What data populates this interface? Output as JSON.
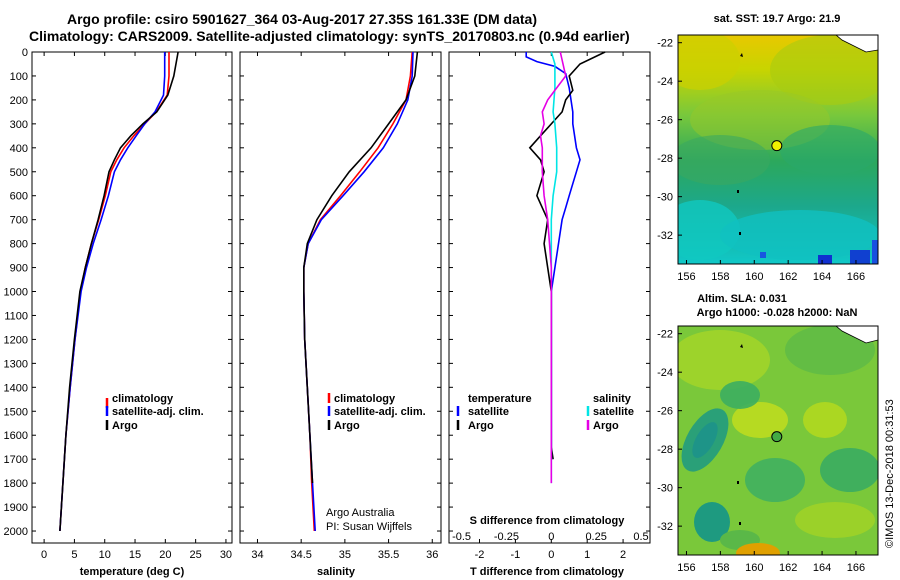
{
  "header": {
    "line1": "Argo profile: csiro 5901627_364 03-Aug-2017 27.35S 161.33E (DM data)",
    "line2": "Climatology: CARS2009. Satellite-adjusted climatology: synTS_20170803.nc (0.94d earlier)"
  },
  "credit": {
    "org": "Argo Australia",
    "pi": "PI: Susan Wijffels",
    "stamp": "©IMOS 13-Dec-2018 00:31:53"
  },
  "colors": {
    "climatology": "#ff0000",
    "satellite": "#0000ff",
    "argo": "#000000",
    "sal_satellite": "#00e5e5",
    "sal_argo": "#e500e5"
  },
  "chart_data": [
    {
      "type": "line",
      "id": "temperature",
      "xlabel": "temperature (deg C)",
      "ylabel": "",
      "xlim": [
        -2,
        31
      ],
      "ylim": [
        2050,
        0
      ],
      "x_ticks": [
        0,
        5,
        10,
        15,
        20,
        25,
        30
      ],
      "y_ticks": [
        0,
        100,
        200,
        300,
        400,
        500,
        600,
        700,
        800,
        900,
        1000,
        1100,
        1200,
        1300,
        1400,
        1500,
        1600,
        1700,
        1800,
        1900,
        2000
      ],
      "legend": [
        "climatology",
        "satellite-adj. clim.",
        "Argo"
      ],
      "series": [
        {
          "name": "climatology",
          "color": "#ff0000",
          "points": [
            [
              20.6,
              0
            ],
            [
              20.6,
              100
            ],
            [
              20.3,
              180
            ],
            [
              18.5,
              250
            ],
            [
              16.6,
              300
            ],
            [
              14.8,
              350
            ],
            [
              13.2,
              400
            ],
            [
              12.0,
              450
            ],
            [
              11.0,
              500
            ],
            [
              10.1,
              600
            ],
            [
              9.0,
              700
            ],
            [
              7.8,
              800
            ],
            [
              6.8,
              900
            ],
            [
              6.0,
              1000
            ],
            [
              5.1,
              1200
            ],
            [
              4.3,
              1400
            ],
            [
              3.6,
              1600
            ],
            [
              3.1,
              1800
            ],
            [
              2.6,
              2000
            ]
          ]
        },
        {
          "name": "satellite-adj. clim.",
          "color": "#0000ff",
          "points": [
            [
              19.9,
              0
            ],
            [
              19.9,
              100
            ],
            [
              19.7,
              180
            ],
            [
              18.3,
              250
            ],
            [
              16.6,
              300
            ],
            [
              15.2,
              350
            ],
            [
              13.8,
              400
            ],
            [
              12.6,
              450
            ],
            [
              11.6,
              500
            ],
            [
              10.6,
              600
            ],
            [
              9.4,
              700
            ],
            [
              8.1,
              800
            ],
            [
              7.0,
              900
            ],
            [
              6.1,
              1000
            ],
            [
              5.1,
              1200
            ],
            [
              4.3,
              1400
            ],
            [
              3.6,
              1600
            ],
            [
              3.1,
              1800
            ],
            [
              2.6,
              2000
            ]
          ]
        },
        {
          "name": "Argo",
          "color": "#000000",
          "points": [
            [
              22.1,
              0
            ],
            [
              21.4,
              100
            ],
            [
              20.4,
              180
            ],
            [
              18.6,
              250
            ],
            [
              16.3,
              300
            ],
            [
              14.3,
              350
            ],
            [
              12.6,
              400
            ],
            [
              11.6,
              450
            ],
            [
              10.7,
              500
            ],
            [
              9.9,
              600
            ],
            [
              8.9,
              700
            ],
            [
              7.8,
              800
            ],
            [
              6.8,
              900
            ],
            [
              5.9,
              1000
            ],
            [
              5.0,
              1200
            ],
            [
              4.2,
              1400
            ],
            [
              3.6,
              1600
            ],
            [
              3.1,
              1800
            ],
            [
              2.6,
              2000
            ]
          ]
        }
      ]
    },
    {
      "type": "line",
      "id": "salinity",
      "xlabel": "salinity",
      "ylabel": "",
      "xlim": [
        33.8,
        36.1
      ],
      "ylim": [
        2050,
        0
      ],
      "x_ticks": [
        34,
        34.5,
        35,
        35.5,
        36
      ],
      "legend": [
        "climatology",
        "satellite-adj. clim.",
        "Argo"
      ],
      "series": [
        {
          "name": "climatology",
          "color": "#ff0000",
          "points": [
            [
              35.77,
              0
            ],
            [
              35.75,
              100
            ],
            [
              35.7,
              200
            ],
            [
              35.55,
              300
            ],
            [
              35.38,
              400
            ],
            [
              35.17,
              500
            ],
            [
              34.95,
              600
            ],
            [
              34.72,
              700
            ],
            [
              34.58,
              800
            ],
            [
              34.53,
              900
            ],
            [
              34.53,
              1000
            ],
            [
              34.54,
              1200
            ],
            [
              34.57,
              1400
            ],
            [
              34.6,
              1600
            ],
            [
              34.62,
              1800
            ],
            [
              34.65,
              2000
            ]
          ]
        },
        {
          "name": "satellite-adj. clim.",
          "color": "#0000ff",
          "points": [
            [
              35.78,
              0
            ],
            [
              35.77,
              100
            ],
            [
              35.72,
              200
            ],
            [
              35.6,
              300
            ],
            [
              35.44,
              400
            ],
            [
              35.22,
              500
            ],
            [
              34.98,
              600
            ],
            [
              34.73,
              700
            ],
            [
              34.58,
              800
            ],
            [
              34.53,
              900
            ],
            [
              34.53,
              1000
            ],
            [
              34.54,
              1200
            ],
            [
              34.57,
              1400
            ],
            [
              34.6,
              1600
            ],
            [
              34.63,
              1800
            ],
            [
              34.66,
              2000
            ]
          ]
        },
        {
          "name": "Argo",
          "color": "#000000",
          "points": [
            [
              35.83,
              0
            ],
            [
              35.8,
              100
            ],
            [
              35.7,
              200
            ],
            [
              35.5,
              300
            ],
            [
              35.3,
              400
            ],
            [
              35.05,
              500
            ],
            [
              34.85,
              600
            ],
            [
              34.68,
              700
            ],
            [
              34.57,
              800
            ],
            [
              34.53,
              900
            ],
            [
              34.53,
              1000
            ],
            [
              34.54,
              1200
            ],
            [
              34.57,
              1400
            ],
            [
              34.6,
              1600
            ],
            [
              34.63,
              1800
            ]
          ]
        }
      ]
    },
    {
      "type": "line",
      "id": "difference",
      "xlabel": "T difference from climatology",
      "top_label": "S difference from climatology",
      "xlim": [
        -2.85,
        2.75
      ],
      "s_scale": 0.2,
      "ylim": [
        2050,
        0
      ],
      "x_ticks": [
        -2,
        -1,
        0,
        1,
        2
      ],
      "top_ticks": [
        "-0.5",
        "-0.25",
        "0",
        "0.25",
        "0.5"
      ],
      "legend_left": [
        "temperature",
        "satellite",
        "Argo"
      ],
      "legend_right": [
        "salinity",
        "satellite",
        "Argo"
      ],
      "series": [
        {
          "name": "T satellite",
          "color": "#0000ff",
          "points": [
            [
              -0.7,
              0
            ],
            [
              -0.7,
              20
            ],
            [
              -0.4,
              40
            ],
            [
              0.1,
              60
            ],
            [
              0.4,
              90
            ],
            [
              0.5,
              150
            ],
            [
              0.6,
              250
            ],
            [
              0.6,
              300
            ],
            [
              0.7,
              400
            ],
            [
              0.8,
              450
            ],
            [
              0.7,
              500
            ],
            [
              0.6,
              550
            ],
            [
              0.5,
              600
            ],
            [
              0.4,
              650
            ],
            [
              0.3,
              700
            ],
            [
              0.2,
              800
            ],
            [
              0.1,
              900
            ],
            [
              0.0,
              1000
            ],
            [
              0.0,
              1200
            ],
            [
              0.0,
              1400
            ],
            [
              0.0,
              1600
            ],
            [
              0.0,
              1700
            ]
          ]
        },
        {
          "name": "T Argo",
          "color": "#000000",
          "points": [
            [
              1.5,
              0
            ],
            [
              0.8,
              50
            ],
            [
              0.5,
              100
            ],
            [
              0.6,
              160
            ],
            [
              0.4,
              200
            ],
            [
              0.3,
              250
            ],
            [
              0.0,
              300
            ],
            [
              -0.3,
              350
            ],
            [
              -0.6,
              400
            ],
            [
              -0.3,
              450
            ],
            [
              -0.2,
              500
            ],
            [
              -0.4,
              600
            ],
            [
              -0.1,
              700
            ],
            [
              -0.2,
              800
            ],
            [
              -0.1,
              900
            ],
            [
              0.0,
              1000
            ],
            [
              0.0,
              1100
            ],
            [
              0.0,
              1200
            ],
            [
              0.0,
              1300
            ],
            [
              0.0,
              1400
            ],
            [
              0.0,
              1500
            ],
            [
              0.0,
              1600
            ],
            [
              0.0,
              1650
            ],
            [
              0.05,
              1700
            ]
          ]
        },
        {
          "name": "S satellite",
          "color": "#00e5e5",
          "points": [
            [
              0,
              0
            ],
            [
              0.02,
              50
            ],
            [
              0.02,
              150
            ],
            [
              0.01,
              250
            ],
            [
              0.02,
              300
            ],
            [
              0.03,
              400
            ],
            [
              0.03,
              500
            ],
            [
              0.02,
              550
            ],
            [
              0.01,
              600
            ],
            [
              0.0,
              700
            ],
            [
              0.0,
              800
            ],
            [
              0.0,
              900
            ],
            [
              0.0,
              1000
            ],
            [
              0.0,
              1200
            ],
            [
              0.0,
              1400
            ],
            [
              0.0,
              1600
            ],
            [
              0.0,
              1800
            ]
          ]
        },
        {
          "name": "S Argo",
          "color": "#e500e5",
          "points": [
            [
              0.05,
              0
            ],
            [
              0.08,
              100
            ],
            [
              0.03,
              150
            ],
            [
              -0.02,
              200
            ],
            [
              -0.05,
              250
            ],
            [
              -0.04,
              300
            ],
            [
              -0.06,
              350
            ],
            [
              -0.05,
              400
            ],
            [
              -0.05,
              500
            ],
            [
              -0.04,
              600
            ],
            [
              -0.02,
              700
            ],
            [
              -0.01,
              800
            ],
            [
              0.0,
              900
            ],
            [
              0.0,
              1000
            ],
            [
              0.0,
              1200
            ],
            [
              0.0,
              1400
            ],
            [
              0.0,
              1600
            ],
            [
              0.0,
              1800
            ]
          ]
        }
      ]
    },
    {
      "type": "heatmap",
      "id": "sst-map",
      "title": "sat. SST: 19.7 Argo: 21.9",
      "x_ticks": [
        156,
        158,
        160,
        162,
        164,
        166
      ],
      "y_ticks": [
        -22,
        -24,
        -26,
        -28,
        -30,
        -32
      ],
      "xlim": [
        155.5,
        167.3
      ],
      "ylim": [
        -33.5,
        -21.6
      ],
      "marker": {
        "lon": 161.33,
        "lat": -27.35,
        "color": "#f0f000"
      }
    },
    {
      "type": "heatmap",
      "id": "sla-map",
      "title": "Altim. SLA: 0.031",
      "subtitle": "Argo h1000: -0.028 h2000: NaN",
      "x_ticks": [
        156,
        158,
        160,
        162,
        164,
        166
      ],
      "y_ticks": [
        -22,
        -24,
        -26,
        -28,
        -30,
        -32
      ],
      "xlim": [
        155.5,
        167.3
      ],
      "ylim": [
        -33.5,
        -21.6
      ],
      "marker": {
        "lon": 161.33,
        "lat": -27.35,
        "color": "#44aa44"
      }
    }
  ]
}
